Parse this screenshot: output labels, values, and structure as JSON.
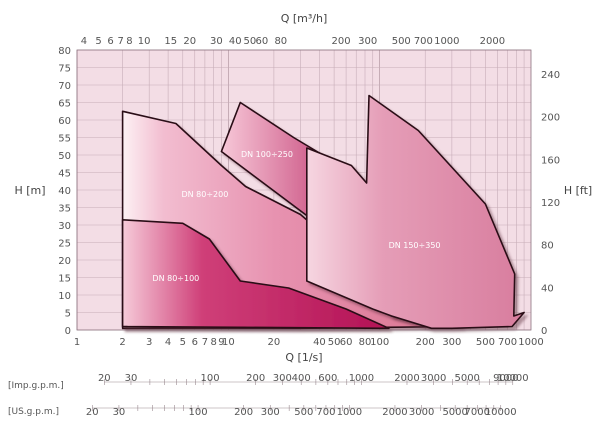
{
  "chart_data": {
    "type": "area",
    "axes": {
      "top": {
        "label": "Q [m³/h]",
        "scale": "log",
        "ticks": [
          "4",
          "5",
          "6",
          "7",
          "8",
          "10",
          "15",
          "20",
          "30",
          "40",
          "50",
          "60",
          "80",
          "200",
          "300",
          "500",
          "700",
          "1000",
          "2000"
        ]
      },
      "bottom": {
        "label": "Q [1/s]",
        "scale": "log",
        "ticks": [
          "1",
          "2",
          "3",
          "4",
          "5",
          "6",
          "7",
          "8",
          "9",
          "10",
          "20",
          "40",
          "50",
          "60",
          "80",
          "100",
          "200",
          "300",
          "500",
          "700",
          "1000"
        ]
      },
      "left": {
        "label": "H [m]",
        "range": [
          0,
          80
        ],
        "ticks": [
          "0",
          "5",
          "10",
          "15",
          "20",
          "25",
          "30",
          "35",
          "40",
          "45",
          "50",
          "55",
          "60",
          "65",
          "70",
          "75",
          "80"
        ]
      },
      "right": {
        "label": "H [ft]",
        "ticks": [
          "0",
          "40",
          "80",
          "120",
          "160",
          "200",
          "240"
        ]
      }
    },
    "grid": true,
    "extra_scales": [
      {
        "label": "[Imp.g.p.m.]",
        "ticks": [
          "20",
          "30",
          "100",
          "200",
          "300",
          "400",
          "600",
          "1000",
          "2000",
          "3000",
          "5000",
          "9000",
          "10000"
        ]
      },
      {
        "label": "[US.g.p.m.]",
        "ticks": [
          "20",
          "30",
          "100",
          "200",
          "300",
          "500",
          "700",
          "1000",
          "2000",
          "3000",
          "5000",
          "7000",
          "10000"
        ]
      }
    ],
    "series": [
      {
        "name": "DN 80÷200",
        "points": [
          [
            2,
            62.5
          ],
          [
            4.5,
            59
          ],
          [
            9,
            47
          ],
          [
            13,
            41
          ],
          [
            30,
            33
          ],
          [
            170,
            5
          ],
          [
            350,
            1
          ],
          [
            30,
            0.5
          ],
          [
            2,
            0.5
          ]
        ]
      },
      {
        "name": "DN 100÷250",
        "points": [
          [
            9,
            51
          ],
          [
            12,
            65
          ],
          [
            27,
            55
          ],
          [
            60,
            46
          ],
          [
            150,
            25
          ],
          [
            420,
            2
          ],
          [
            200,
            2
          ],
          [
            120,
            4
          ],
          [
            40,
            30
          ],
          [
            9,
            51
          ]
        ]
      },
      {
        "name": "DN 150÷350",
        "points": [
          [
            33,
            52
          ],
          [
            65,
            47
          ],
          [
            82,
            42
          ],
          [
            85,
            67
          ],
          [
            180,
            57
          ],
          [
            500,
            36
          ],
          [
            780,
            16
          ],
          [
            770,
            4
          ],
          [
            900,
            5
          ],
          [
            750,
            1
          ],
          [
            300,
            0.5
          ],
          [
            220,
            0.5
          ],
          [
            120,
            4
          ],
          [
            90,
            6
          ],
          [
            33,
            14
          ]
        ]
      },
      {
        "name": "DN 80÷100",
        "points": [
          [
            2,
            31.5
          ],
          [
            5,
            30.5
          ],
          [
            7.5,
            26
          ],
          [
            12,
            14
          ],
          [
            25,
            12
          ],
          [
            60,
            6
          ],
          [
            115,
            0.5
          ],
          [
            2,
            1
          ]
        ]
      }
    ]
  }
}
